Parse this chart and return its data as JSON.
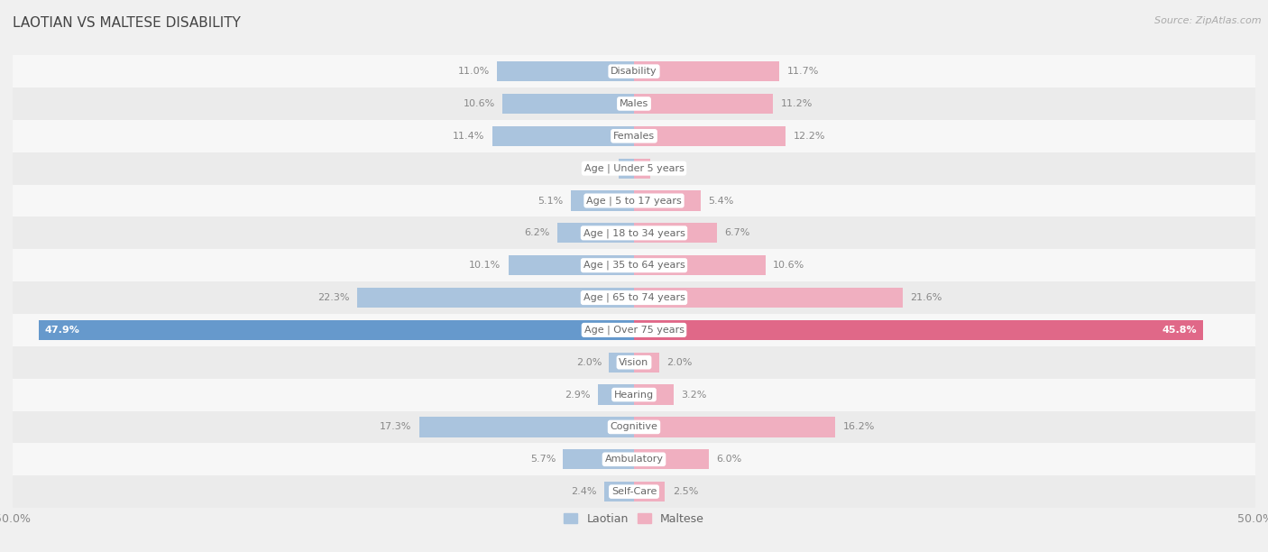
{
  "title": "LAOTIAN VS MALTESE DISABILITY",
  "source": "Source: ZipAtlas.com",
  "categories": [
    "Disability",
    "Males",
    "Females",
    "Age | Under 5 years",
    "Age | 5 to 17 years",
    "Age | 18 to 34 years",
    "Age | 35 to 64 years",
    "Age | 65 to 74 years",
    "Age | Over 75 years",
    "Vision",
    "Hearing",
    "Cognitive",
    "Ambulatory",
    "Self-Care"
  ],
  "laotian": [
    11.0,
    10.6,
    11.4,
    1.2,
    5.1,
    6.2,
    10.1,
    22.3,
    47.9,
    2.0,
    2.9,
    17.3,
    5.7,
    2.4
  ],
  "maltese": [
    11.7,
    11.2,
    12.2,
    1.3,
    5.4,
    6.7,
    10.6,
    21.6,
    45.8,
    2.0,
    3.2,
    16.2,
    6.0,
    2.5
  ],
  "laotian_color": "#aac4de",
  "maltese_color": "#f0afc0",
  "laotian_color_highlight": "#6699cc",
  "maltese_color_highlight": "#e06888",
  "axis_max": 50.0,
  "row_color_even": "#f7f7f7",
  "row_color_odd": "#ebebeb",
  "background_color": "#f0f0f0",
  "title_fontsize": 11,
  "label_fontsize": 8,
  "value_fontsize": 8,
  "legend_fontsize": 9
}
